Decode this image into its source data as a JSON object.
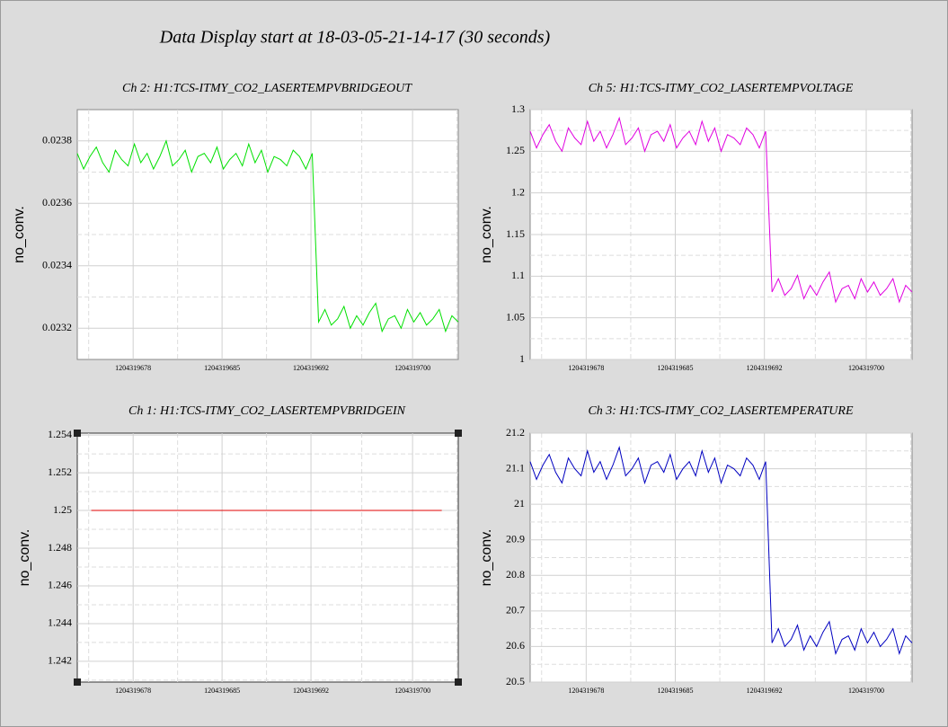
{
  "title": "Data Display start at 18-03-05-21-14-17 (30 seconds)",
  "chart_data": [
    {
      "type": "line",
      "title": "Ch 2: H1:TCS-ITMY_CO2_LASERTEMPVBRIDGEOUT",
      "ylabel": "no_conv.",
      "xlim": [
        1204319673.6,
        1204319703.6
      ],
      "xticks": [
        1204319678,
        1204319685,
        1204319692,
        1204319700
      ],
      "ylim": [
        0.0231,
        0.0239
      ],
      "yticks": [
        0.0232,
        0.0234,
        0.0236,
        0.0238
      ],
      "grid": true,
      "x": [
        1204319673.6,
        1204319674.1,
        1204319674.6,
        1204319675.1,
        1204319675.6,
        1204319676.1,
        1204319676.6,
        1204319677.1,
        1204319677.6,
        1204319678.1,
        1204319678.6,
        1204319679.1,
        1204319679.6,
        1204319680.1,
        1204319680.6,
        1204319681.1,
        1204319681.6,
        1204319682.1,
        1204319682.6,
        1204319683.1,
        1204319683.6,
        1204319684.1,
        1204319684.6,
        1204319685.1,
        1204319685.6,
        1204319686.1,
        1204319686.6,
        1204319687.1,
        1204319687.6,
        1204319688.1,
        1204319688.6,
        1204319689.1,
        1204319689.6,
        1204319690.1,
        1204319690.6,
        1204319691.1,
        1204319691.6,
        1204319692.1,
        1204319692.6,
        1204319693.1,
        1204319693.6,
        1204319694.1,
        1204319694.6,
        1204319695.1,
        1204319695.6,
        1204319696.1,
        1204319696.6,
        1204319697.1,
        1204319697.6,
        1204319698.1,
        1204319698.6,
        1204319699.1,
        1204319699.6,
        1204319700.1,
        1204319700.6,
        1204319701.1,
        1204319701.6,
        1204319702.1,
        1204319702.6,
        1204319703.1,
        1204319703.6
      ],
      "series": [
        {
          "color": "#00e000",
          "values": [
            0.02376,
            0.02371,
            0.02375,
            0.02378,
            0.02373,
            0.0237,
            0.02377,
            0.02374,
            0.02372,
            0.02379,
            0.02373,
            0.02376,
            0.02371,
            0.02375,
            0.0238,
            0.02372,
            0.02374,
            0.02377,
            0.0237,
            0.02375,
            0.02376,
            0.02373,
            0.02378,
            0.02371,
            0.02374,
            0.02376,
            0.02372,
            0.02379,
            0.02373,
            0.02377,
            0.0237,
            0.02375,
            0.02374,
            0.02372,
            0.02377,
            0.02375,
            0.02371,
            0.02376,
            0.02322,
            0.02326,
            0.02321,
            0.02323,
            0.02327,
            0.0232,
            0.02324,
            0.02321,
            0.02325,
            0.02328,
            0.02319,
            0.02323,
            0.02324,
            0.0232,
            0.02326,
            0.02322,
            0.02325,
            0.02321,
            0.02323,
            0.02326,
            0.02319,
            0.02324,
            0.02322
          ]
        }
      ]
    },
    {
      "type": "line",
      "title": "Ch 5: H1:TCS-ITMY_CO2_LASERTEMPVOLTAGE",
      "ylabel": "no_conv.",
      "xlim": [
        1204319673.6,
        1204319703.6
      ],
      "xticks": [
        1204319678,
        1204319685,
        1204319692,
        1204319700
      ],
      "ylim": [
        1,
        1.3
      ],
      "yticks": [
        1,
        1.05,
        1.1,
        1.15,
        1.2,
        1.25,
        1.3
      ],
      "grid": true,
      "x": [
        1204319673.6,
        1204319674.1,
        1204319674.6,
        1204319675.1,
        1204319675.6,
        1204319676.1,
        1204319676.6,
        1204319677.1,
        1204319677.6,
        1204319678.1,
        1204319678.6,
        1204319679.1,
        1204319679.6,
        1204319680.1,
        1204319680.6,
        1204319681.1,
        1204319681.6,
        1204319682.1,
        1204319682.6,
        1204319683.1,
        1204319683.6,
        1204319684.1,
        1204319684.6,
        1204319685.1,
        1204319685.6,
        1204319686.1,
        1204319686.6,
        1204319687.1,
        1204319687.6,
        1204319688.1,
        1204319688.6,
        1204319689.1,
        1204319689.6,
        1204319690.1,
        1204319690.6,
        1204319691.1,
        1204319691.6,
        1204319692.1,
        1204319692.6,
        1204319693.1,
        1204319693.6,
        1204319694.1,
        1204319694.6,
        1204319695.1,
        1204319695.6,
        1204319696.1,
        1204319696.6,
        1204319697.1,
        1204319697.6,
        1204319698.1,
        1204319698.6,
        1204319699.1,
        1204319699.6,
        1204319700.1,
        1204319700.6,
        1204319701.1,
        1204319701.6,
        1204319702.1,
        1204319702.6,
        1204319703.1,
        1204319703.6
      ],
      "series": [
        {
          "color": "#e000e0",
          "values": [
            1.274,
            1.254,
            1.27,
            1.282,
            1.262,
            1.25,
            1.278,
            1.266,
            1.258,
            1.286,
            1.262,
            1.274,
            1.254,
            1.27,
            1.29,
            1.258,
            1.266,
            1.278,
            1.25,
            1.27,
            1.274,
            1.262,
            1.282,
            1.254,
            1.266,
            1.274,
            1.258,
            1.286,
            1.262,
            1.278,
            1.25,
            1.27,
            1.266,
            1.258,
            1.278,
            1.27,
            1.254,
            1.274,
            1.081,
            1.097,
            1.077,
            1.085,
            1.101,
            1.073,
            1.089,
            1.077,
            1.093,
            1.105,
            1.069,
            1.085,
            1.089,
            1.073,
            1.097,
            1.081,
            1.093,
            1.077,
            1.085,
            1.097,
            1.069,
            1.089,
            1.081
          ]
        }
      ]
    },
    {
      "type": "line",
      "title": "Ch 1: H1:TCS-ITMY_CO2_LASERTEMPVBRIDGEIN",
      "ylabel": "no_conv.",
      "xlim": [
        1204319673.6,
        1204319703.6
      ],
      "xticks": [
        1204319678,
        1204319685,
        1204319692,
        1204319700
      ],
      "ylim": [
        1.2409,
        1.2541
      ],
      "yticks": [
        1.242,
        1.244,
        1.246,
        1.248,
        1.25,
        1.252,
        1.254
      ],
      "grid": true,
      "x": [
        1204319674.7,
        1204319702.3
      ],
      "series": [
        {
          "color": "#e00000",
          "values": [
            1.25,
            1.25
          ]
        }
      ]
    },
    {
      "type": "line",
      "title": "Ch 3: H1:TCS-ITMY_CO2_LASERTEMPERATURE",
      "ylabel": "no_conv.",
      "xlim": [
        1204319673.6,
        1204319703.6
      ],
      "xticks": [
        1204319678,
        1204319685,
        1204319692,
        1204319700
      ],
      "ylim": [
        20.5,
        21.2
      ],
      "yticks": [
        20.5,
        20.6,
        20.7,
        20.8,
        20.9,
        21,
        21.1,
        21.2
      ],
      "grid": true,
      "x": [
        1204319673.6,
        1204319674.1,
        1204319674.6,
        1204319675.1,
        1204319675.6,
        1204319676.1,
        1204319676.6,
        1204319677.1,
        1204319677.6,
        1204319678.1,
        1204319678.6,
        1204319679.1,
        1204319679.6,
        1204319680.1,
        1204319680.6,
        1204319681.1,
        1204319681.6,
        1204319682.1,
        1204319682.6,
        1204319683.1,
        1204319683.6,
        1204319684.1,
        1204319684.6,
        1204319685.1,
        1204319685.6,
        1204319686.1,
        1204319686.6,
        1204319687.1,
        1204319687.6,
        1204319688.1,
        1204319688.6,
        1204319689.1,
        1204319689.6,
        1204319690.1,
        1204319690.6,
        1204319691.1,
        1204319691.6,
        1204319692.1,
        1204319692.6,
        1204319693.1,
        1204319693.6,
        1204319694.1,
        1204319694.6,
        1204319695.1,
        1204319695.6,
        1204319696.1,
        1204319696.6,
        1204319697.1,
        1204319697.6,
        1204319698.1,
        1204319698.6,
        1204319699.1,
        1204319699.6,
        1204319700.1,
        1204319700.6,
        1204319701.1,
        1204319701.6,
        1204319702.1,
        1204319702.6,
        1204319703.1,
        1204319703.6
      ],
      "series": [
        {
          "color": "#0000c0",
          "values": [
            21.12,
            21.07,
            21.11,
            21.14,
            21.09,
            21.06,
            21.13,
            21.1,
            21.08,
            21.15,
            21.09,
            21.12,
            21.07,
            21.11,
            21.16,
            21.08,
            21.1,
            21.13,
            21.06,
            21.11,
            21.12,
            21.09,
            21.14,
            21.07,
            21.1,
            21.12,
            21.08,
            21.15,
            21.09,
            21.13,
            21.06,
            21.11,
            21.1,
            21.08,
            21.13,
            21.11,
            21.07,
            21.12,
            20.61,
            20.65,
            20.6,
            20.62,
            20.66,
            20.59,
            20.63,
            20.6,
            20.64,
            20.67,
            20.58,
            20.62,
            20.63,
            20.59,
            20.65,
            20.61,
            20.64,
            20.6,
            20.62,
            20.65,
            20.58,
            20.63,
            20.61
          ]
        }
      ]
    }
  ]
}
